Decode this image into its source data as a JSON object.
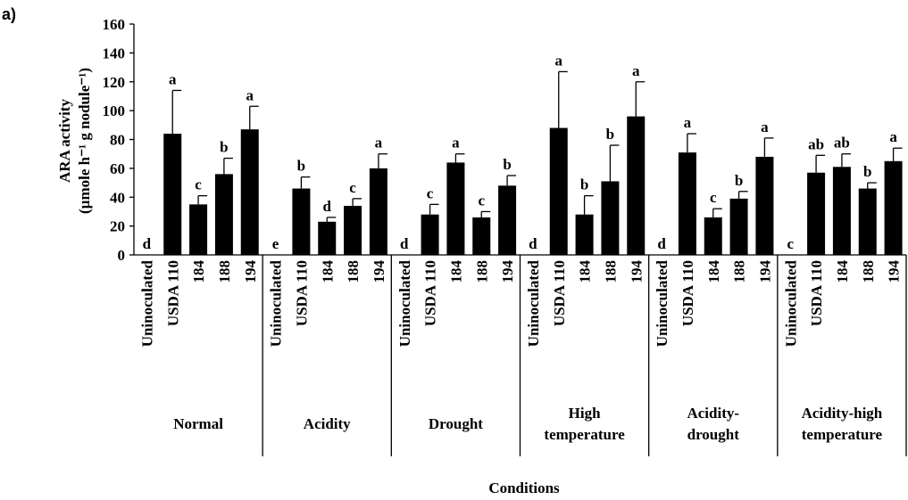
{
  "chart_data": {
    "type": "bar",
    "panel_label": "a)",
    "y_label": [
      "ARA activity",
      "(µmole h⁻¹ g nodule⁻¹)"
    ],
    "x_label": "Conditions",
    "color": "#000000",
    "ylim": [
      0,
      160
    ],
    "yticks": [
      0,
      20,
      40,
      60,
      80,
      100,
      120,
      140,
      160
    ],
    "categories": [
      "Uninoculated",
      "USDA 110",
      "184",
      "188",
      "194"
    ],
    "groups": [
      {
        "name": [
          "Normal"
        ],
        "values": [
          0,
          84,
          35,
          56,
          87
        ],
        "errors": [
          0,
          30,
          6,
          11,
          16
        ],
        "letters": [
          "d",
          "a",
          "c",
          "b",
          "a"
        ]
      },
      {
        "name": [
          "Acidity"
        ],
        "values": [
          0,
          46,
          23,
          34,
          60
        ],
        "errors": [
          0,
          8,
          3,
          5,
          10
        ],
        "letters": [
          "e",
          "b",
          "d",
          "c",
          "a"
        ]
      },
      {
        "name": [
          "Drought"
        ],
        "values": [
          0,
          28,
          64,
          26,
          48
        ],
        "errors": [
          0,
          7,
          6,
          4,
          7
        ],
        "letters": [
          "d",
          "c",
          "a",
          "c",
          "b"
        ]
      },
      {
        "name": [
          "High",
          "temperature"
        ],
        "values": [
          0,
          88,
          28,
          51,
          96
        ],
        "errors": [
          0,
          39,
          13,
          25,
          24
        ],
        "letters": [
          "d",
          "a",
          "b",
          "b",
          "a"
        ]
      },
      {
        "name": [
          "Acidity-",
          "drought"
        ],
        "values": [
          0,
          71,
          26,
          39,
          68
        ],
        "errors": [
          0,
          13,
          6,
          5,
          13
        ],
        "letters": [
          "d",
          "a",
          "c",
          "b",
          "a"
        ]
      },
      {
        "name": [
          "Acidity-high",
          "temperature"
        ],
        "values": [
          0,
          57,
          61,
          46,
          65
        ],
        "errors": [
          0,
          12,
          9,
          4,
          9
        ],
        "letters": [
          "c",
          "ab",
          "ab",
          "b",
          "a"
        ]
      }
    ]
  }
}
